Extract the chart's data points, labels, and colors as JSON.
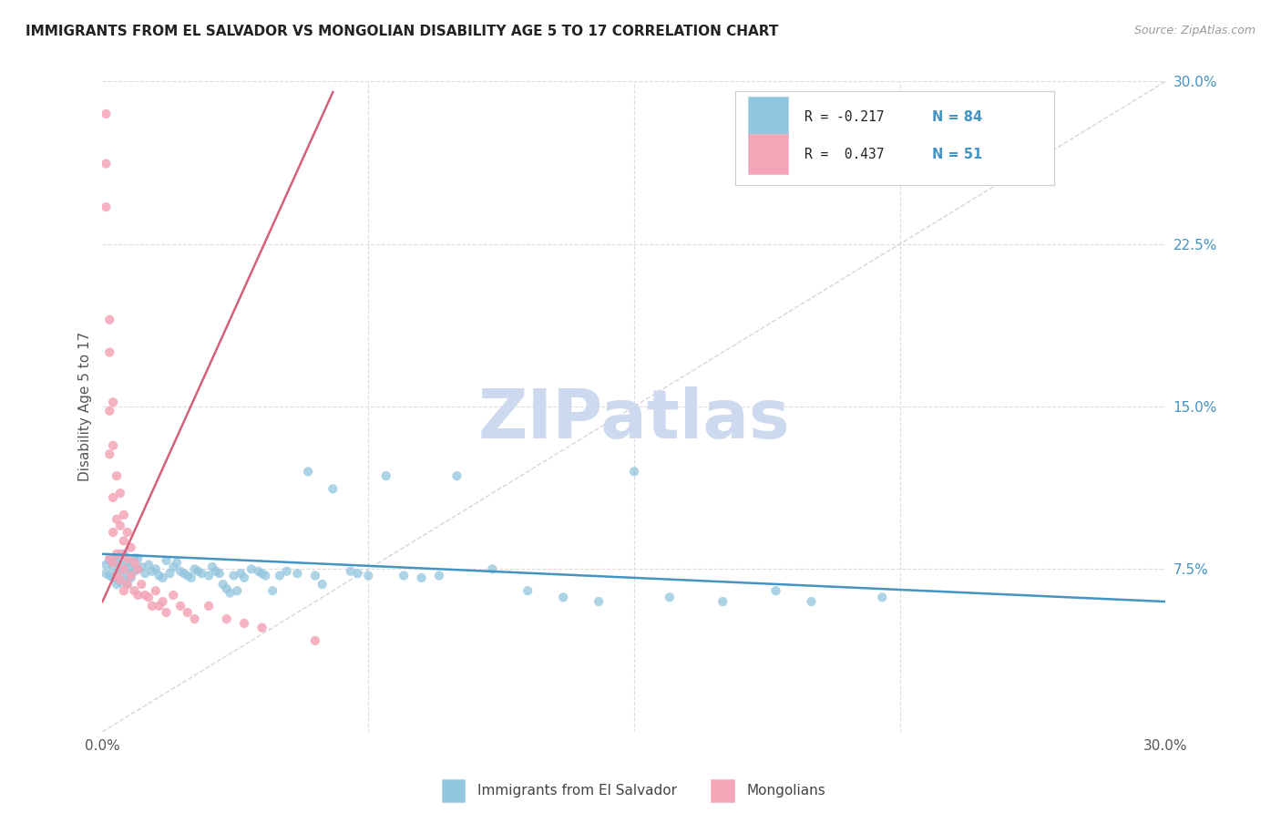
{
  "title": "IMMIGRANTS FROM EL SALVADOR VS MONGOLIAN DISABILITY AGE 5 TO 17 CORRELATION CHART",
  "source": "Source: ZipAtlas.com",
  "ylabel": "Disability Age 5 to 17",
  "legend_label_1": "Immigrants from El Salvador",
  "legend_label_2": "Mongolians",
  "color_blue": "#92c5de",
  "color_pink": "#f4a6b8",
  "color_blue_line": "#4393c3",
  "color_pink_line": "#d6607a",
  "color_dashed": "#cccccc",
  "watermark_color": "#cdd9ee",
  "background_color": "#ffffff",
  "grid_color": "#dddddd",
  "xlim": [
    0.0,
    0.3
  ],
  "ylim": [
    0.0,
    0.3
  ],
  "blue_scatter_x": [
    0.001,
    0.001,
    0.002,
    0.002,
    0.003,
    0.003,
    0.003,
    0.004,
    0.004,
    0.004,
    0.005,
    0.005,
    0.005,
    0.006,
    0.006,
    0.006,
    0.007,
    0.007,
    0.007,
    0.008,
    0.008,
    0.009,
    0.009,
    0.01,
    0.01,
    0.011,
    0.012,
    0.013,
    0.014,
    0.015,
    0.016,
    0.017,
    0.018,
    0.019,
    0.02,
    0.021,
    0.022,
    0.023,
    0.024,
    0.025,
    0.026,
    0.027,
    0.028,
    0.03,
    0.031,
    0.032,
    0.033,
    0.034,
    0.035,
    0.036,
    0.037,
    0.038,
    0.039,
    0.04,
    0.042,
    0.044,
    0.045,
    0.046,
    0.048,
    0.05,
    0.052,
    0.055,
    0.058,
    0.06,
    0.062,
    0.065,
    0.07,
    0.072,
    0.075,
    0.08,
    0.085,
    0.09,
    0.095,
    0.1,
    0.11,
    0.12,
    0.13,
    0.14,
    0.15,
    0.16,
    0.175,
    0.19,
    0.2,
    0.22
  ],
  "blue_scatter_y": [
    0.077,
    0.073,
    0.079,
    0.072,
    0.08,
    0.076,
    0.071,
    0.079,
    0.073,
    0.068,
    0.077,
    0.074,
    0.069,
    0.082,
    0.075,
    0.07,
    0.078,
    0.073,
    0.068,
    0.076,
    0.071,
    0.08,
    0.074,
    0.08,
    0.075,
    0.076,
    0.073,
    0.077,
    0.074,
    0.075,
    0.072,
    0.071,
    0.079,
    0.073,
    0.076,
    0.078,
    0.074,
    0.073,
    0.072,
    0.071,
    0.075,
    0.074,
    0.073,
    0.072,
    0.076,
    0.074,
    0.073,
    0.068,
    0.066,
    0.064,
    0.072,
    0.065,
    0.073,
    0.071,
    0.075,
    0.074,
    0.073,
    0.072,
    0.065,
    0.072,
    0.074,
    0.073,
    0.12,
    0.072,
    0.068,
    0.112,
    0.074,
    0.073,
    0.072,
    0.118,
    0.072,
    0.071,
    0.072,
    0.118,
    0.075,
    0.065,
    0.062,
    0.06,
    0.12,
    0.062,
    0.06,
    0.065,
    0.06,
    0.062
  ],
  "pink_scatter_x": [
    0.001,
    0.001,
    0.001,
    0.002,
    0.002,
    0.002,
    0.002,
    0.002,
    0.003,
    0.003,
    0.003,
    0.003,
    0.003,
    0.004,
    0.004,
    0.004,
    0.004,
    0.005,
    0.005,
    0.005,
    0.005,
    0.006,
    0.006,
    0.006,
    0.006,
    0.007,
    0.007,
    0.007,
    0.008,
    0.008,
    0.009,
    0.009,
    0.01,
    0.01,
    0.011,
    0.012,
    0.013,
    0.014,
    0.015,
    0.016,
    0.017,
    0.018,
    0.02,
    0.022,
    0.024,
    0.026,
    0.03,
    0.035,
    0.04,
    0.045,
    0.06
  ],
  "pink_scatter_y": [
    0.285,
    0.262,
    0.242,
    0.19,
    0.175,
    0.148,
    0.128,
    0.08,
    0.152,
    0.132,
    0.108,
    0.092,
    0.078,
    0.118,
    0.098,
    0.082,
    0.072,
    0.11,
    0.095,
    0.082,
    0.07,
    0.1,
    0.088,
    0.075,
    0.065,
    0.092,
    0.08,
    0.068,
    0.085,
    0.072,
    0.078,
    0.065,
    0.075,
    0.063,
    0.068,
    0.063,
    0.062,
    0.058,
    0.065,
    0.058,
    0.06,
    0.055,
    0.063,
    0.058,
    0.055,
    0.052,
    0.058,
    0.052,
    0.05,
    0.048,
    0.042
  ],
  "blue_trendline_x": [
    0.0,
    0.3
  ],
  "blue_trendline_y": [
    0.082,
    0.06
  ],
  "pink_trendline_x": [
    0.0,
    0.065
  ],
  "pink_trendline_y": [
    0.06,
    0.295
  ],
  "diag_line_x": [
    0.0,
    0.3
  ],
  "diag_line_y": [
    0.0,
    0.3
  ],
  "yticks": [
    0.075,
    0.15,
    0.225,
    0.3
  ],
  "ytick_labels": [
    "7.5%",
    "15.0%",
    "22.5%",
    "30.0%"
  ],
  "xticks": [
    0.0,
    0.3
  ],
  "xtick_labels": [
    "0.0%",
    "30.0%"
  ],
  "legend_R1": "R = -0.217",
  "legend_N1": "N = 84",
  "legend_R2": "R =  0.437",
  "legend_N2": "N = 51"
}
